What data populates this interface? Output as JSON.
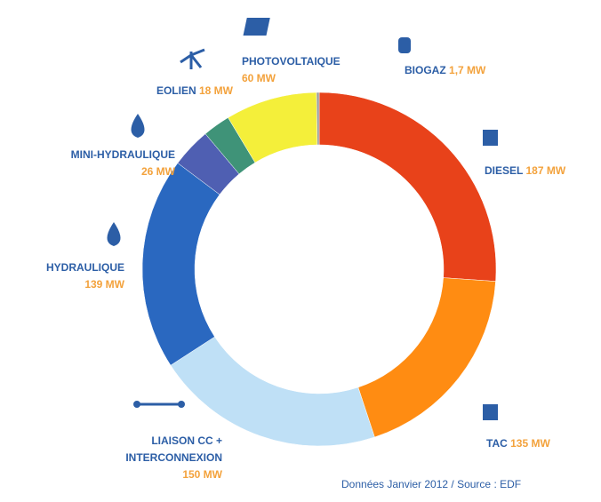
{
  "chart_data": {
    "type": "pie",
    "donut": true,
    "categories": [
      "DIESEL",
      "TAC",
      "LIAISON CC + INTERCONNEXION",
      "HYDRAULIQUE",
      "MINI-HYDRAULIQUE",
      "EOLIEN",
      "PHOTOVOLTAIQUE",
      "BIOGAZ"
    ],
    "values": [
      187,
      135,
      150,
      139,
      26,
      18,
      60,
      1.7
    ],
    "value_labels": [
      "187 MW",
      "135 MW",
      "150 MW",
      "139 MW",
      "26 MW",
      "18 MW",
      "60 MW",
      "1,7 MW"
    ],
    "colors": [
      "#e8421a",
      "#ff8c12",
      "#bfe0f6",
      "#2a68c0",
      "#4f5fb2",
      "#3f9378",
      "#f4ef3a",
      "#9a9a9a"
    ],
    "source": "Données Janvier 2012 / Source : EDF"
  }
}
